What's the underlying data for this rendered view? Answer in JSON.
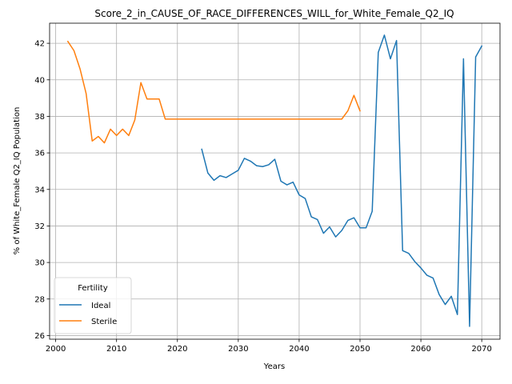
{
  "chart_data": {
    "type": "line",
    "title": "Score_2_in_CAUSE_OF_RACE_DIFFERENCES_WILL_for_White_Female_Q2_IQ",
    "xlabel": "Years",
    "ylabel": "% of White_Female Q2_IQ Population",
    "xlim": [
      1999,
      2073
    ],
    "ylim": [
      25.8,
      43.1
    ],
    "xticks": [
      2000,
      2010,
      2020,
      2030,
      2040,
      2050,
      2060,
      2070
    ],
    "yticks": [
      26,
      28,
      30,
      32,
      34,
      36,
      38,
      40,
      42
    ],
    "grid": true,
    "legend": {
      "title": "Fertility",
      "placement": "lower-left"
    },
    "series": [
      {
        "name": "Ideal",
        "color": "#1f77b4",
        "x": [
          2024,
          2025,
          2026,
          2027,
          2028,
          2029,
          2030,
          2031,
          2032,
          2033,
          2034,
          2035,
          2036,
          2037,
          2038,
          2039,
          2040,
          2041,
          2042,
          2043,
          2044,
          2045,
          2046,
          2047,
          2048,
          2049,
          2050,
          2051,
          2052,
          2053,
          2054,
          2055,
          2056,
          2057,
          2058,
          2059,
          2060,
          2061,
          2062,
          2063,
          2064,
          2065,
          2066,
          2067,
          2068,
          2069,
          2070
        ],
        "y": [
          36.2,
          34.9,
          34.5,
          34.75,
          34.65,
          34.85,
          35.05,
          35.7,
          35.55,
          35.3,
          35.25,
          35.35,
          35.65,
          34.45,
          34.25,
          34.4,
          33.7,
          33.5,
          32.5,
          32.35,
          31.6,
          31.95,
          31.4,
          31.75,
          32.3,
          32.45,
          31.9,
          31.9,
          32.8,
          41.5,
          42.45,
          41.15,
          42.15,
          30.65,
          30.5,
          30.05,
          29.7,
          29.3,
          29.15,
          28.25,
          27.7,
          28.15,
          27.15,
          41.15,
          26.5,
          41.25,
          41.85
        ]
      },
      {
        "name": "Sterile",
        "color": "#ff7f0e",
        "x": [
          2002,
          2003,
          2004,
          2005,
          2006,
          2007,
          2008,
          2009,
          2010,
          2011,
          2012,
          2013,
          2014,
          2015,
          2016,
          2017,
          2018,
          2019,
          2020,
          2021,
          2022,
          2023,
          2024,
          2025,
          2026,
          2027,
          2028,
          2029,
          2030,
          2031,
          2032,
          2033,
          2034,
          2035,
          2036,
          2037,
          2038,
          2039,
          2040,
          2041,
          2042,
          2043,
          2044,
          2045,
          2046,
          2047,
          2048,
          2049,
          2050
        ],
        "y": [
          42.1,
          41.6,
          40.6,
          39.25,
          36.65,
          36.9,
          36.55,
          37.3,
          36.95,
          37.3,
          36.95,
          37.8,
          39.85,
          38.95,
          38.95,
          38.95,
          37.85,
          37.85,
          37.85,
          37.85,
          37.85,
          37.85,
          37.85,
          37.85,
          37.85,
          37.85,
          37.85,
          37.85,
          37.85,
          37.85,
          37.85,
          37.85,
          37.85,
          37.85,
          37.85,
          37.85,
          37.85,
          37.85,
          37.85,
          37.85,
          37.85,
          37.85,
          37.85,
          37.85,
          37.85,
          37.85,
          38.3,
          39.15,
          38.3
        ]
      }
    ]
  }
}
